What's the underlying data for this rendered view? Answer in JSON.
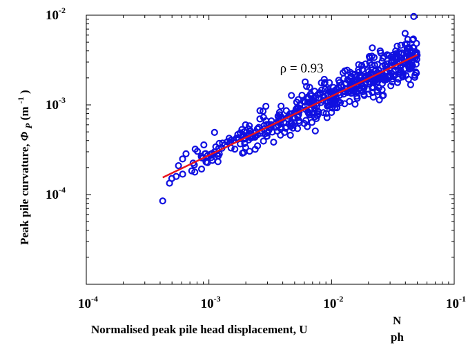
{
  "chart_data": {
    "type": "scatter",
    "xscale": "log",
    "yscale": "log",
    "xlim": [
      0.0001,
      0.1
    ],
    "ylim": [
      1e-05,
      0.01
    ],
    "grid": false,
    "xlabel": {
      "text": "Normalised peak pile head displacement, U",
      "sup": "N",
      "sub": "ph"
    },
    "ylabel": {
      "prefix": "Peak pile curvature, ",
      "symbol": "Φ",
      "symbol_sub": "P",
      "unit_open": " (m",
      "unit_exp": "-1",
      "unit_close": ")"
    },
    "x_ticks": [
      {
        "value": 0.0001,
        "base": "10",
        "exp": "-4"
      },
      {
        "value": 0.001,
        "base": "10",
        "exp": "-3"
      },
      {
        "value": 0.01,
        "base": "10",
        "exp": "-2"
      },
      {
        "value": 0.1,
        "base": "10",
        "exp": "-1"
      }
    ],
    "y_ticks": [
      {
        "value": 0.0001,
        "base": "10",
        "exp": "-4"
      },
      {
        "value": 0.001,
        "base": "10",
        "exp": "-3"
      },
      {
        "value": 0.01,
        "base": "10",
        "exp": "-2"
      }
    ],
    "annotation": {
      "text": "ρ = 0.93",
      "x": 0.0038,
      "y": 0.0023
    },
    "fit_line": {
      "color": "#e8141c",
      "points": [
        [
          0.00042,
          0.000155
        ],
        [
          0.05,
          0.0036
        ]
      ]
    },
    "marker_color": "#1010e0",
    "outlier": [
      0.00042,
      8.5e-05
    ],
    "cloud": {
      "x_range": [
        0.00045,
        0.05
      ],
      "count": 520,
      "seed": 7
    }
  }
}
